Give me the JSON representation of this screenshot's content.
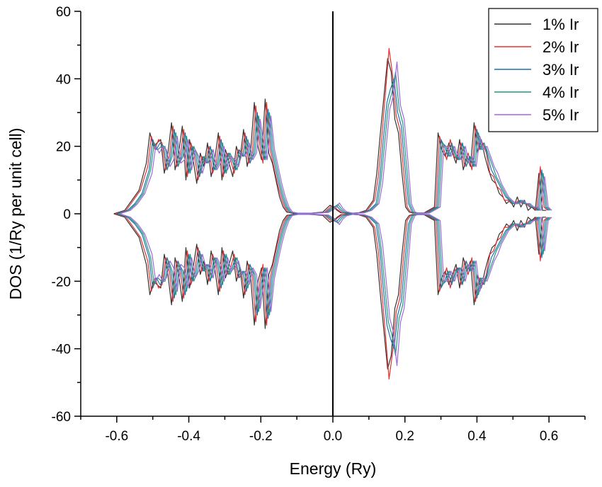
{
  "chart_data": {
    "type": "line",
    "title": "",
    "xlabel": "Energy (Ry)",
    "ylabel": "DOS (1/Ry per unit cell)",
    "xlim": [
      -0.7,
      0.7
    ],
    "ylim": [
      -60,
      60
    ],
    "xticks": [
      -0.6,
      -0.4,
      -0.2,
      0.0,
      0.2,
      0.4,
      0.6
    ],
    "xtick_labels": [
      "-0.6",
      "-0.4",
      "-0.2",
      "0.0",
      "0.2",
      "0.4",
      "0.6"
    ],
    "yticks": [
      -60,
      -40,
      -20,
      0,
      20,
      40,
      60
    ],
    "ytick_labels": [
      "-60",
      "-40",
      "-20",
      "0",
      "20",
      "40",
      "60"
    ],
    "grid": false,
    "legend_position": "top-right",
    "vertical_line_x": 0.0,
    "spin_down_mirrored": true,
    "x": [
      -0.6,
      -0.57,
      -0.55,
      -0.53,
      -0.51,
      -0.5,
      -0.49,
      -0.48,
      -0.47,
      -0.46,
      -0.45,
      -0.44,
      -0.43,
      -0.42,
      -0.41,
      -0.4,
      -0.39,
      -0.38,
      -0.37,
      -0.36,
      -0.35,
      -0.34,
      -0.33,
      -0.32,
      -0.31,
      -0.3,
      -0.29,
      -0.28,
      -0.27,
      -0.26,
      -0.25,
      -0.24,
      -0.23,
      -0.22,
      -0.21,
      -0.2,
      -0.19,
      -0.18,
      -0.17,
      -0.16,
      -0.15,
      -0.14,
      -0.13,
      -0.12,
      -0.1,
      -0.05,
      -0.02,
      0.0,
      0.01,
      0.02,
      0.03,
      0.05,
      0.08,
      0.1,
      0.12,
      0.13,
      0.14,
      0.15,
      0.16,
      0.17,
      0.18,
      0.19,
      0.2,
      0.21,
      0.22,
      0.23,
      0.26,
      0.29,
      0.3,
      0.31,
      0.32,
      0.33,
      0.34,
      0.35,
      0.36,
      0.37,
      0.38,
      0.39,
      0.4,
      0.41,
      0.42,
      0.43,
      0.44,
      0.45,
      0.46,
      0.47,
      0.48,
      0.49,
      0.5,
      0.51,
      0.52,
      0.53,
      0.54,
      0.55,
      0.56,
      0.57,
      0.58,
      0.59,
      0.6
    ],
    "series": [
      {
        "name": "1% Ir",
        "color": "#333333",
        "x_shift": -0.008,
        "values": [
          0,
          1,
          4,
          7,
          15,
          24,
          20,
          21,
          22,
          12,
          18,
          27,
          13,
          18,
          26,
          10,
          22,
          16,
          9,
          18,
          14,
          21,
          11,
          16,
          24,
          10,
          19,
          15,
          11,
          20,
          16,
          25,
          14,
          19,
          33,
          20,
          16,
          34,
          18,
          15,
          10,
          5,
          2,
          0.5,
          0.1,
          0.2,
          0.5,
          2.5,
          2,
          1,
          0.3,
          0.1,
          0.3,
          1,
          4,
          12,
          24,
          35,
          46,
          42,
          28,
          24,
          12,
          2,
          0.5,
          0.2,
          0.2,
          2,
          24,
          19,
          17,
          21,
          18,
          15,
          22,
          13,
          17,
          14,
          27,
          18,
          22,
          17,
          13,
          10,
          9,
          6,
          5,
          3,
          4,
          2,
          5,
          2,
          4,
          1,
          2,
          1,
          12,
          1,
          1
        ]
      },
      {
        "name": "2% Ir",
        "color": "#e8302c",
        "x_shift": -0.004,
        "values": [
          0,
          1,
          4,
          7,
          14,
          23,
          19,
          22,
          21,
          13,
          17,
          26,
          14,
          17,
          25,
          11,
          21,
          17,
          10,
          17,
          15,
          20,
          12,
          15,
          23,
          11,
          18,
          16,
          12,
          19,
          17,
          24,
          15,
          18,
          32,
          21,
          15,
          33,
          19,
          14,
          9,
          5,
          2,
          0.5,
          0.1,
          0.2,
          0.4,
          2.2,
          1.8,
          1,
          0.3,
          0.1,
          0.3,
          1,
          4,
          11,
          23,
          36,
          49,
          41,
          29,
          25,
          13,
          2,
          0.5,
          0.2,
          0.2,
          2,
          23,
          20,
          16,
          22,
          17,
          16,
          21,
          14,
          18,
          13,
          26,
          19,
          21,
          18,
          12,
          11,
          8,
          7,
          4,
          4,
          3,
          3,
          4,
          3,
          3,
          2,
          2,
          1,
          14,
          2,
          1
        ]
      },
      {
        "name": "3% Ir",
        "color": "#1f6fa8",
        "x_shift": 0.0,
        "values": [
          0,
          1,
          3,
          6,
          13,
          22,
          19,
          21,
          20,
          13,
          17,
          25,
          14,
          17,
          24,
          12,
          20,
          17,
          11,
          17,
          15,
          20,
          13,
          15,
          22,
          12,
          18,
          16,
          13,
          19,
          17,
          23,
          15,
          18,
          30,
          21,
          16,
          31,
          19,
          14,
          9,
          5,
          2,
          0.5,
          0.1,
          0.2,
          0.4,
          2.0,
          2.4,
          1.2,
          0.4,
          0.1,
          0.3,
          1,
          3,
          10,
          22,
          33,
          37,
          40,
          30,
          26,
          14,
          3,
          0.5,
          0.2,
          0.2,
          2,
          22,
          20,
          17,
          21,
          17,
          16,
          21,
          14,
          17,
          14,
          25,
          19,
          21,
          17,
          13,
          11,
          9,
          7,
          5,
          4,
          3,
          3,
          4,
          3,
          3,
          2,
          2,
          1,
          13,
          2,
          1
        ]
      },
      {
        "name": "4% Ir",
        "color": "#1a9b7d",
        "x_shift": 0.004,
        "values": [
          0,
          1,
          3,
          6,
          13,
          21,
          19,
          20,
          20,
          14,
          17,
          24,
          15,
          17,
          23,
          12,
          20,
          17,
          12,
          17,
          15,
          19,
          13,
          15,
          21,
          12,
          18,
          16,
          13,
          18,
          17,
          22,
          16,
          18,
          29,
          21,
          16,
          30,
          19,
          14,
          9,
          5,
          2,
          0.5,
          0.1,
          0.2,
          0.4,
          1.8,
          2.8,
          1.4,
          0.5,
          0.1,
          0.3,
          1,
          3,
          10,
          21,
          32,
          36,
          42,
          31,
          27,
          15,
          3,
          0.5,
          0.2,
          0.2,
          2,
          21,
          20,
          17,
          20,
          17,
          16,
          20,
          15,
          17,
          14,
          24,
          19,
          20,
          17,
          14,
          11,
          9,
          7,
          5,
          4,
          3,
          3,
          4,
          3,
          3,
          2,
          2,
          1,
          12,
          2,
          1
        ]
      },
      {
        "name": "5% Ir",
        "color": "#a066e0",
        "x_shift": 0.008,
        "values": [
          0,
          1,
          3,
          6,
          12,
          20,
          18,
          20,
          19,
          14,
          16,
          23,
          15,
          16,
          22,
          13,
          19,
          17,
          12,
          16,
          15,
          19,
          13,
          15,
          20,
          13,
          17,
          16,
          14,
          18,
          17,
          21,
          16,
          18,
          28,
          21,
          16,
          29,
          19,
          14,
          9,
          5,
          2,
          0.5,
          0.1,
          0.2,
          0.4,
          1.6,
          3.2,
          1.6,
          0.6,
          0.1,
          0.3,
          1,
          3,
          9,
          20,
          31,
          35,
          45,
          32,
          28,
          16,
          3,
          0.5,
          0.2,
          0.2,
          2,
          20,
          20,
          17,
          20,
          17,
          16,
          20,
          15,
          17,
          14,
          23,
          19,
          20,
          17,
          14,
          12,
          9,
          7,
          5,
          4,
          3,
          3,
          4,
          3,
          3,
          2,
          2,
          1,
          11,
          2,
          1
        ]
      }
    ]
  }
}
